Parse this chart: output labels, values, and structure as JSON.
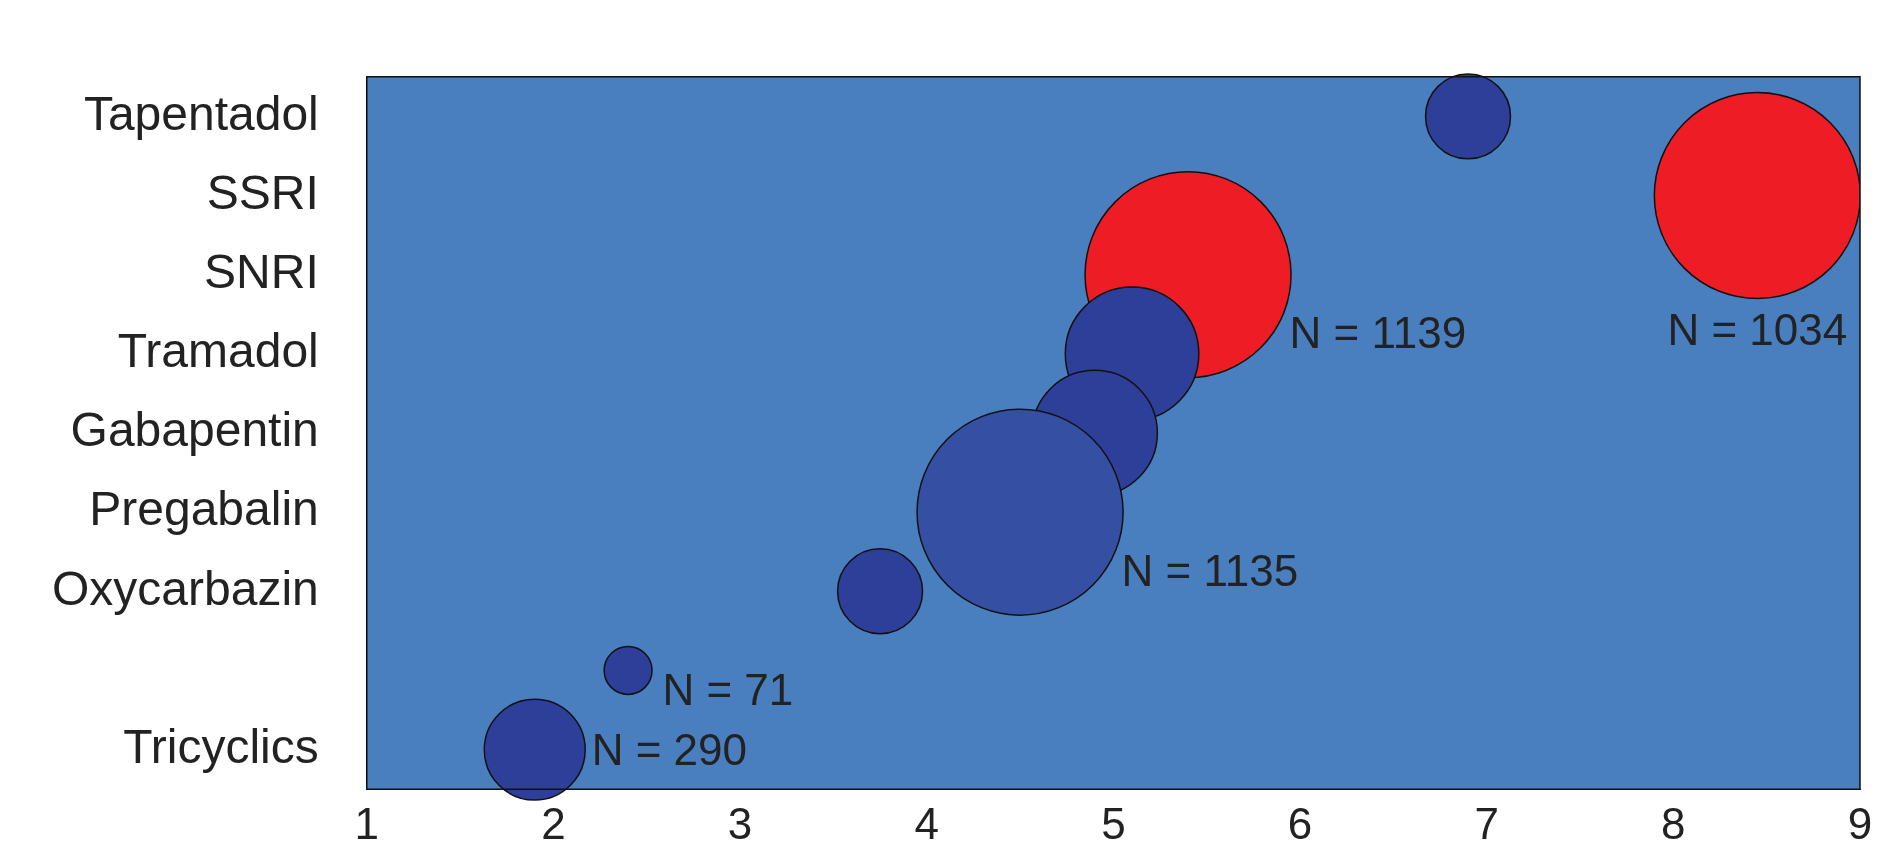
{
  "chart_data": {
    "type": "bubble",
    "orientation": "horizontal",
    "categories": [
      "Tapentadol",
      "SSRI",
      "SNRI",
      "Tramadol",
      "Gabapentin",
      "Pregabalin",
      "Oxycarbazin",
      null,
      "Tricyclics"
    ],
    "values": [
      6.9,
      8.45,
      5.4,
      5.1,
      4.9,
      4.5,
      3.75,
      2.4,
      1.9
    ],
    "sizes": [
      0.17,
      1,
      1,
      0.42,
      0.37,
      1,
      0.17,
      0.054,
      0.24
    ],
    "colors": [
      "#2e3f99",
      "#ee1c25",
      "#ee1c25",
      "#2e3f99",
      "#2e3f99",
      "#3550a3",
      "#2e3f99",
      "#2e3f99",
      "#2e3f99"
    ],
    "xlim": [
      1,
      9
    ],
    "xticks": [
      1,
      2,
      3,
      4,
      5,
      6,
      7,
      8,
      9
    ],
    "annotations": [
      {
        "text": "N = 290",
        "x": 1.9,
        "y": "Tricyclics"
      },
      {
        "text": "N = 71",
        "x": 2.4
      },
      {
        "text": "N = 1135",
        "x": 4.5,
        "y": "Pregabalin"
      },
      {
        "text": "N = 1139",
        "x": 5.4,
        "y": "SNRI"
      },
      {
        "text": "N = 1034",
        "x": 8.45,
        "y": "SSRI"
      }
    ]
  }
}
